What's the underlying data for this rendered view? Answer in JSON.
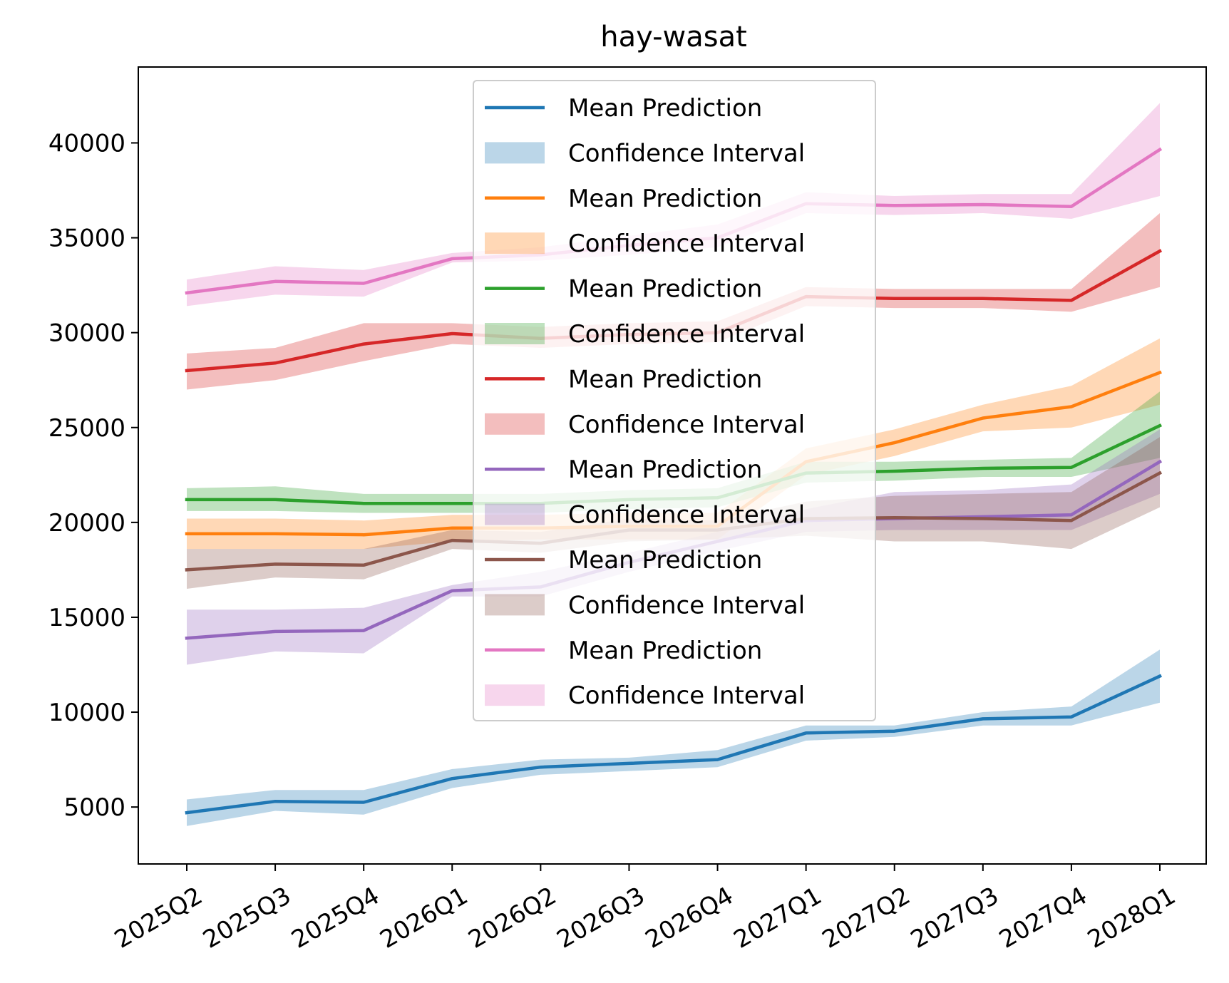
{
  "chart_data": {
    "type": "line",
    "title": "hay-wasat",
    "xlabel": "",
    "ylabel": "",
    "categories": [
      "2025Q2",
      "2025Q3",
      "2025Q4",
      "2026Q1",
      "2026Q2",
      "2026Q3",
      "2026Q4",
      "2027Q1",
      "2027Q2",
      "2027Q3",
      "2027Q4",
      "2028Q1"
    ],
    "ylim": [
      2000,
      44000
    ],
    "yticks": [
      5000,
      10000,
      15000,
      20000,
      25000,
      30000,
      35000,
      40000
    ],
    "grid": false,
    "legend_position": "upper center",
    "series": [
      {
        "name": "Mean Prediction",
        "band_name": "Confidence Interval",
        "color": "#1f77b4",
        "values": [
          4700,
          5300,
          5250,
          6500,
          7100,
          7300,
          7500,
          8900,
          9000,
          9650,
          9750,
          11900
        ],
        "lower": [
          4000,
          4800,
          4600,
          6000,
          6700,
          6900,
          7100,
          8500,
          8700,
          9300,
          9300,
          10500
        ],
        "upper": [
          5400,
          5900,
          5900,
          7000,
          7500,
          7600,
          8000,
          9300,
          9300,
          10000,
          10300,
          13300
        ]
      },
      {
        "name": "Mean Prediction",
        "band_name": "Confidence Interval",
        "color": "#ff7f0e",
        "values": [
          19400,
          19400,
          19350,
          19700,
          19700,
          19800,
          19800,
          23200,
          24200,
          25500,
          26100,
          27900
        ],
        "lower": [
          18600,
          18600,
          18600,
          19000,
          19100,
          19100,
          19100,
          22500,
          23500,
          24800,
          25000,
          26200
        ],
        "upper": [
          20200,
          20200,
          20100,
          20400,
          20400,
          20500,
          20500,
          23900,
          24900,
          26200,
          27200,
          29700
        ]
      },
      {
        "name": "Mean Prediction",
        "band_name": "Confidence Interval",
        "color": "#2ca02c",
        "values": [
          21200,
          21200,
          21000,
          21000,
          21000,
          21200,
          21300,
          22600,
          22700,
          22850,
          22900,
          25100
        ],
        "lower": [
          20600,
          20600,
          20500,
          20500,
          20500,
          20700,
          20800,
          22100,
          22200,
          22400,
          22400,
          23400
        ],
        "upper": [
          21800,
          21900,
          21500,
          21500,
          21500,
          21700,
          21800,
          23200,
          23200,
          23300,
          23400,
          26900
        ]
      },
      {
        "name": "Mean Prediction",
        "band_name": "Confidence Interval",
        "color": "#d62728",
        "values": [
          28000,
          28400,
          29400,
          29950,
          29700,
          29900,
          30000,
          31900,
          31800,
          31800,
          31700,
          34300
        ],
        "lower": [
          27000,
          27500,
          28500,
          29400,
          29200,
          29400,
          29500,
          31400,
          31300,
          31300,
          31100,
          32400
        ],
        "upper": [
          28900,
          29200,
          30500,
          30500,
          30300,
          30500,
          30600,
          32400,
          32300,
          32300,
          32300,
          36300
        ]
      },
      {
        "name": "Mean Prediction",
        "band_name": "Confidence Interval",
        "color": "#9467bd",
        "values": [
          13900,
          14250,
          14300,
          16400,
          16600,
          17900,
          19000,
          20100,
          20200,
          20300,
          20400,
          23200
        ],
        "lower": [
          12500,
          13200,
          13100,
          16100,
          16100,
          17400,
          18500,
          19500,
          19600,
          19600,
          19600,
          21500
        ],
        "upper": [
          15400,
          15400,
          15500,
          16700,
          17400,
          18400,
          19500,
          20700,
          21600,
          21700,
          22000,
          24900
        ]
      },
      {
        "name": "Mean Prediction",
        "band_name": "Confidence Interval",
        "color": "#8c564b",
        "values": [
          17500,
          17800,
          17750,
          19050,
          18900,
          19600,
          19600,
          20200,
          20250,
          20200,
          20100,
          22600
        ],
        "lower": [
          16500,
          17100,
          17000,
          18600,
          18400,
          19000,
          19100,
          19300,
          19000,
          19000,
          18600,
          20800
        ],
        "upper": [
          18600,
          18600,
          18600,
          19600,
          19500,
          20200,
          20100,
          21100,
          21400,
          21500,
          21600,
          24500
        ]
      },
      {
        "name": "Mean Prediction",
        "band_name": "Confidence Interval",
        "color": "#e377c2",
        "values": [
          32100,
          32700,
          32600,
          33900,
          34100,
          34600,
          35000,
          36800,
          36700,
          36750,
          36650,
          39650
        ],
        "lower": [
          31400,
          32000,
          31900,
          33700,
          33800,
          34100,
          34500,
          36300,
          36200,
          36300,
          36000,
          37200
        ],
        "upper": [
          32800,
          33500,
          33300,
          34200,
          34500,
          35100,
          35700,
          37400,
          37200,
          37300,
          37300,
          42100
        ]
      }
    ]
  }
}
